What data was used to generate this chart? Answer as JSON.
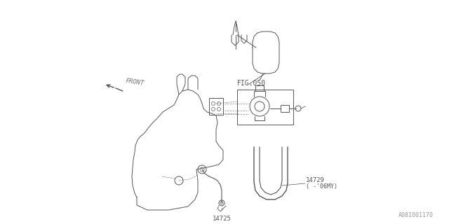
{
  "bg_color": "#ffffff",
  "lc": "#555555",
  "lc_dark": "#333333",
  "fig_label": "FIG.050",
  "front_label": "FRONT",
  "label_14725": "14725",
  "label_14729": "14729",
  "label_06my": "( -'06MY)",
  "watermark": "A081001170"
}
